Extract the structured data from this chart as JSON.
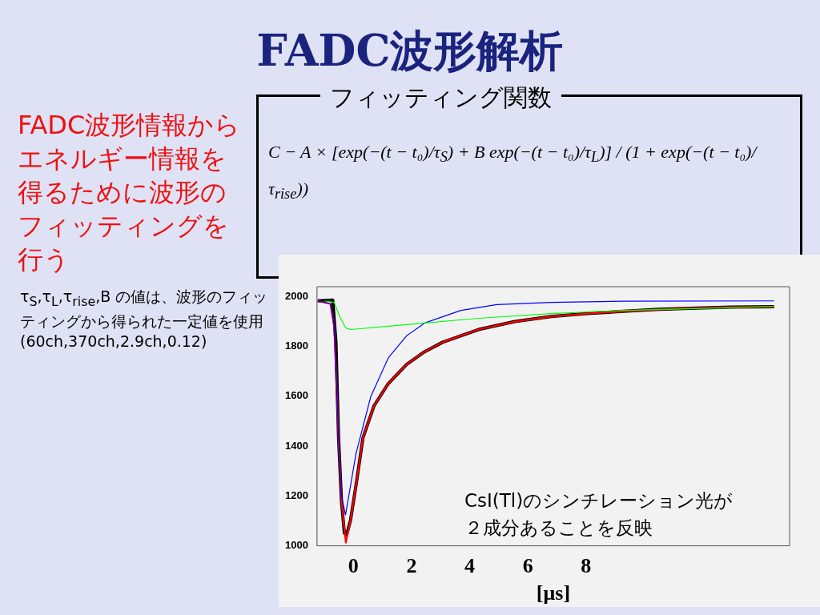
{
  "chart_data": {
    "type": "line",
    "title": "FADC波形解析",
    "xlabel": "[μs]",
    "annotations": [
      "フィッティング関数",
      "C − A × [exp(−(t − t₀)/τ$_{S}$) + B exp(−(t − t₀)/τ$_{L}$)] / (1 + exp(−(t − t₀)/τ$_{rise}$))",
      "FADC波形情報からエネルギー情報を得るために波形のフィッティングを行う",
      "τ$_{S}$,τ$_{L}$,τ$_{rise}$,B の値は、波形のフィッティングから得られた一定値を使用 (60ch,370ch,2.9ch,0.12)",
      "CsI(Tl)のシンチレーション光が２成分あることを反映"
    ],
    "xlim": [
      -1.25,
      15
    ],
    "xticks": [
      0,
      2,
      4,
      6,
      8
    ],
    "ylim": [
      1000,
      2040
    ],
    "yticks": [
      1000,
      1200,
      1400,
      1600,
      1800,
      2000
    ],
    "grid": false,
    "legend": false,
    "marker": "none",
    "line_style": "solid",
    "series": [
      {
        "color": "#000000",
        "x": [
          -1.23,
          -0.71,
          -0.6,
          -0.51,
          -0.41,
          -0.31,
          -0.23,
          -0.1,
          0.09,
          0.33,
          0.71,
          1.2,
          1.83,
          2.45,
          3.07,
          4.3,
          5.55,
          6.8,
          8.04,
          9.28,
          10.5,
          11.8,
          13.0,
          14.47
        ],
        "values": [
          1983,
          1986,
          1817,
          1434,
          1179,
          1051,
          1045,
          1102,
          1243,
          1434,
          1562,
          1651,
          1728,
          1779,
          1817,
          1868,
          1900,
          1920,
          1932,
          1941,
          1949,
          1954,
          1958,
          1960
        ]
      },
      {
        "color": "#ff0000",
        "x": [
          -1.23,
          -0.79,
          -0.66,
          -0.51,
          -0.41,
          -0.26,
          -0.1,
          0.09,
          0.33,
          0.71,
          1.2,
          1.83,
          2.45,
          3.07,
          4.3,
          5.55,
          6.8,
          8.04,
          9.28,
          10.5,
          11.8,
          13.0,
          14.47
        ],
        "values": [
          1983,
          1971,
          1881,
          1434,
          1179,
          1013,
          1102,
          1243,
          1434,
          1562,
          1651,
          1728,
          1779,
          1817,
          1868,
          1900,
          1920,
          1932,
          1941,
          1949,
          1954,
          1958,
          1960
        ]
      },
      {
        "color": "#0000ff",
        "x": [
          -1.23,
          -0.79,
          -0.66,
          -0.51,
          -0.41,
          -0.27,
          0.09,
          0.6,
          1.2,
          1.83,
          2.45,
          3.7,
          4.93,
          6.8,
          9.3,
          14.47
        ],
        "values": [
          1983,
          1971,
          1881,
          1434,
          1200,
          1124,
          1370,
          1600,
          1754,
          1843,
          1894,
          1945,
          1968,
          1977,
          1982,
          1983
        ]
      },
      {
        "color": "#00ff00",
        "x": [
          -1.0,
          -0.66,
          -0.47,
          -0.27,
          -0.1,
          1.83,
          4.3,
          6.8,
          9.3,
          14.47
        ],
        "values": [
          1983,
          1977,
          1920,
          1875,
          1868,
          1888,
          1913,
          1932,
          1945,
          1960
        ]
      }
    ]
  }
}
